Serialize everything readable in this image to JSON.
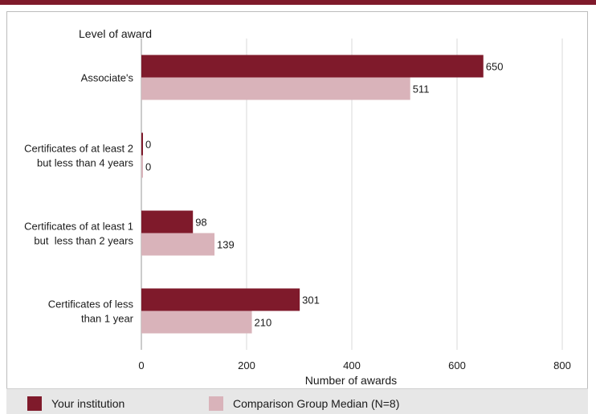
{
  "chart_data": {
    "type": "bar",
    "orientation": "horizontal",
    "category_axis_title": "Level of award",
    "xlabel": "Number of awards",
    "xlim": [
      0,
      800
    ],
    "xticks": [
      0,
      200,
      400,
      600,
      800
    ],
    "grid": true,
    "legend_position": "bottom",
    "categories": [
      [
        "Associate's"
      ],
      [
        "Certificates of at least 2",
        "but less than 4 years"
      ],
      [
        "Certificates of at least 1",
        "but  less than 2 years"
      ],
      [
        "Certificates of less",
        "than 1 year"
      ]
    ],
    "series": [
      {
        "name": "Your institution",
        "color": "#7f1a2b",
        "values": [
          650,
          0,
          98,
          301
        ]
      },
      {
        "name": "Comparison Group Median (N=8)",
        "color": "#d9b3ba",
        "values": [
          511,
          0,
          139,
          210
        ]
      }
    ]
  },
  "colors": {
    "accent": "#7f1a2b",
    "grid": "#d9d9d9",
    "axis": "#999999",
    "legend_bg": "#e7e7e7"
  }
}
